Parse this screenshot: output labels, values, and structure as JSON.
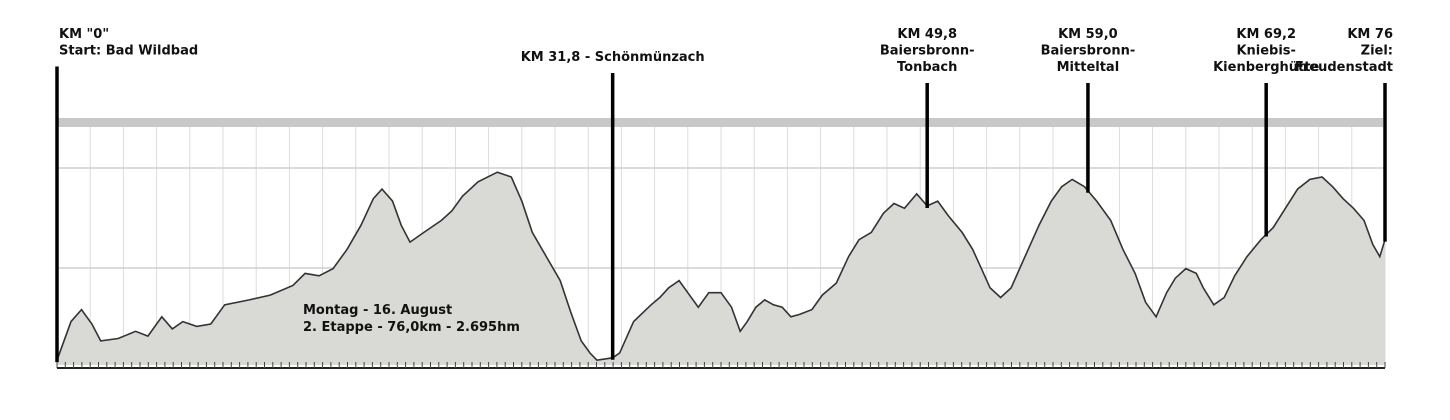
{
  "chart_data": {
    "type": "area",
    "title": "",
    "xlabel": "",
    "ylabel": "",
    "xlim": [
      0,
      76
    ],
    "grid": true,
    "fill_color": "#d9d9d6",
    "line_color": "#333333",
    "profile": [
      [
        0,
        0.02
      ],
      [
        0.8,
        0.18
      ],
      [
        1.4,
        0.23
      ],
      [
        2.0,
        0.17
      ],
      [
        2.5,
        0.1
      ],
      [
        3.5,
        0.11
      ],
      [
        4.5,
        0.14
      ],
      [
        5.2,
        0.12
      ],
      [
        6.0,
        0.2
      ],
      [
        6.6,
        0.15
      ],
      [
        7.2,
        0.18
      ],
      [
        8.0,
        0.16
      ],
      [
        8.8,
        0.17
      ],
      [
        9.6,
        0.25
      ],
      [
        11.0,
        0.27
      ],
      [
        12.2,
        0.29
      ],
      [
        13.5,
        0.33
      ],
      [
        14.2,
        0.38
      ],
      [
        15.0,
        0.37
      ],
      [
        15.8,
        0.4
      ],
      [
        16.6,
        0.48
      ],
      [
        17.4,
        0.58
      ],
      [
        18.1,
        0.69
      ],
      [
        18.6,
        0.73
      ],
      [
        19.2,
        0.68
      ],
      [
        19.7,
        0.58
      ],
      [
        20.2,
        0.51
      ],
      [
        21.0,
        0.55
      ],
      [
        22.0,
        0.6
      ],
      [
        22.6,
        0.64
      ],
      [
        23.2,
        0.7
      ],
      [
        24.1,
        0.76
      ],
      [
        25.2,
        0.8
      ],
      [
        26.0,
        0.78
      ],
      [
        26.6,
        0.68
      ],
      [
        27.2,
        0.55
      ],
      [
        28.0,
        0.45
      ],
      [
        28.8,
        0.35
      ],
      [
        29.4,
        0.22
      ],
      [
        30.0,
        0.1
      ],
      [
        30.5,
        0.05
      ],
      [
        30.9,
        0.02
      ],
      [
        31.8,
        0.03
      ],
      [
        32.2,
        0.05
      ],
      [
        33.0,
        0.18
      ],
      [
        34.0,
        0.25
      ],
      [
        34.5,
        0.28
      ],
      [
        35.0,
        0.32
      ],
      [
        35.6,
        0.35
      ],
      [
        36.1,
        0.3
      ],
      [
        36.7,
        0.24
      ],
      [
        37.3,
        0.3
      ],
      [
        38.0,
        0.3
      ],
      [
        38.6,
        0.24
      ],
      [
        39.1,
        0.14
      ],
      [
        39.5,
        0.18
      ],
      [
        40.0,
        0.24
      ],
      [
        40.5,
        0.27
      ],
      [
        41.0,
        0.25
      ],
      [
        41.5,
        0.24
      ],
      [
        42.0,
        0.2
      ],
      [
        42.5,
        0.21
      ],
      [
        43.2,
        0.23
      ],
      [
        43.8,
        0.29
      ],
      [
        44.6,
        0.34
      ],
      [
        45.3,
        0.45
      ],
      [
        45.9,
        0.52
      ],
      [
        46.6,
        0.55
      ],
      [
        47.3,
        0.63
      ],
      [
        47.9,
        0.67
      ],
      [
        48.5,
        0.65
      ],
      [
        49.2,
        0.71
      ],
      [
        49.8,
        0.66
      ],
      [
        50.4,
        0.68
      ],
      [
        51.0,
        0.62
      ],
      [
        51.8,
        0.55
      ],
      [
        52.4,
        0.48
      ],
      [
        52.9,
        0.4
      ],
      [
        53.4,
        0.32
      ],
      [
        54.0,
        0.28
      ],
      [
        54.6,
        0.32
      ],
      [
        55.4,
        0.45
      ],
      [
        56.2,
        0.58
      ],
      [
        56.9,
        0.68
      ],
      [
        57.5,
        0.74
      ],
      [
        58.1,
        0.77
      ],
      [
        58.8,
        0.74
      ],
      [
        59.5,
        0.68
      ],
      [
        60.3,
        0.6
      ],
      [
        61.0,
        0.48
      ],
      [
        61.7,
        0.38
      ],
      [
        62.3,
        0.26
      ],
      [
        62.9,
        0.2
      ],
      [
        63.5,
        0.3
      ],
      [
        64.0,
        0.36
      ],
      [
        64.6,
        0.4
      ],
      [
        65.2,
        0.38
      ],
      [
        65.6,
        0.32
      ],
      [
        66.2,
        0.25
      ],
      [
        66.8,
        0.28
      ],
      [
        67.4,
        0.37
      ],
      [
        68.1,
        0.45
      ],
      [
        68.9,
        0.52
      ],
      [
        69.6,
        0.57
      ],
      [
        70.3,
        0.65
      ],
      [
        71.0,
        0.73
      ],
      [
        71.7,
        0.77
      ],
      [
        72.4,
        0.78
      ],
      [
        73.0,
        0.74
      ],
      [
        73.6,
        0.69
      ],
      [
        74.2,
        0.65
      ],
      [
        74.8,
        0.6
      ],
      [
        75.3,
        0.5
      ],
      [
        75.7,
        0.45
      ],
      [
        76.0,
        0.52
      ]
    ],
    "markers": [
      {
        "km": 0,
        "lines": [
          "KM \"0\"",
          "Start: Bad Wildbad"
        ],
        "anchor": "start"
      },
      {
        "km": 31.8,
        "lines": [
          "KM 31,8 - Schönmünzach"
        ],
        "anchor": "middle"
      },
      {
        "km": 49.8,
        "lines": [
          "KM 49,8",
          "Baiersbronn-",
          "Tonbach"
        ],
        "anchor": "middle"
      },
      {
        "km": 59.0,
        "lines": [
          "KM 59,0",
          "Baiersbronn-",
          "Mitteltal"
        ],
        "anchor": "middle"
      },
      {
        "km": 69.2,
        "lines": [
          "KM 69,2",
          "Kniebis-",
          "Kienberghütte"
        ],
        "anchor": "middle"
      },
      {
        "km": 76,
        "lines": [
          "KM 76",
          "Ziel:",
          "Freudenstadt"
        ],
        "anchor": "end"
      }
    ],
    "annotations": [
      "Montag - 16. August",
      "2. Etappe - 76,0km - 2.695hm"
    ]
  }
}
